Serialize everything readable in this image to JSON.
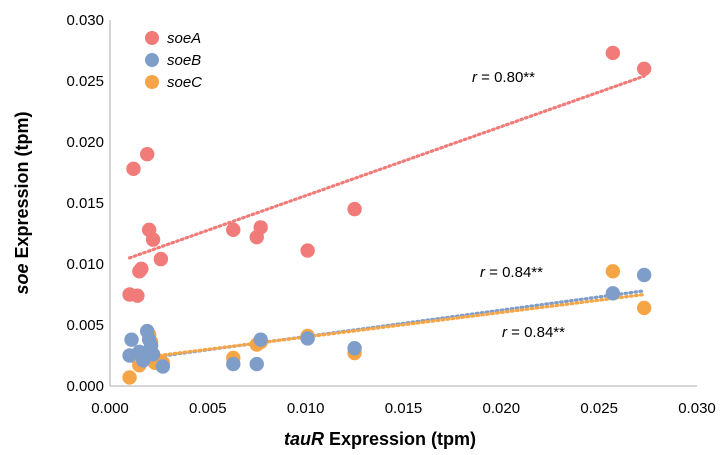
{
  "chart_data": {
    "type": "scatter",
    "xlabel": {
      "italic": "tauR",
      "rest": " Expression (tpm)"
    },
    "ylabel": {
      "italic": "soe",
      "rest": " Expression (tpm)"
    },
    "xlim": [
      0,
      0.03
    ],
    "ylim": [
      0,
      0.03
    ],
    "xticks": [
      "0.000",
      "0.005",
      "0.010",
      "0.015",
      "0.020",
      "0.025",
      "0.030"
    ],
    "yticks": [
      "0.000",
      "0.005",
      "0.010",
      "0.015",
      "0.020",
      "0.025",
      "0.030"
    ],
    "legend_position": "top-left",
    "series": [
      {
        "name": "soeA",
        "color": "#f07b79",
        "points": [
          [
            0.001,
            0.0075
          ],
          [
            0.0012,
            0.0178
          ],
          [
            0.0014,
            0.0074
          ],
          [
            0.0015,
            0.0094
          ],
          [
            0.0016,
            0.0096
          ],
          [
            0.0019,
            0.019
          ],
          [
            0.002,
            0.0128
          ],
          [
            0.0022,
            0.012
          ],
          [
            0.0026,
            0.0104
          ],
          [
            0.0063,
            0.0128
          ],
          [
            0.0075,
            0.0122
          ],
          [
            0.0077,
            0.013
          ],
          [
            0.0101,
            0.0111
          ],
          [
            0.0125,
            0.0145
          ],
          [
            0.0257,
            0.0273
          ],
          [
            0.0273,
            0.026
          ]
        ],
        "trend": [
          [
            0.001,
            0.0105
          ],
          [
            0.0273,
            0.0254
          ]
        ],
        "annotation": {
          "r_label": "r",
          "text": " = 0.80**"
        }
      },
      {
        "name": "soeB",
        "color": "#7f9dc9",
        "points": [
          [
            0.001,
            0.0025
          ],
          [
            0.0011,
            0.0038
          ],
          [
            0.0015,
            0.0028
          ],
          [
            0.0017,
            0.0021
          ],
          [
            0.0019,
            0.0045
          ],
          [
            0.002,
            0.0038
          ],
          [
            0.0021,
            0.0033
          ],
          [
            0.0022,
            0.0026
          ],
          [
            0.0027,
            0.0016
          ],
          [
            0.0063,
            0.0018
          ],
          [
            0.0075,
            0.0018
          ],
          [
            0.0077,
            0.0038
          ],
          [
            0.0101,
            0.0039
          ],
          [
            0.0125,
            0.0031
          ],
          [
            0.0257,
            0.0076
          ],
          [
            0.0273,
            0.0091
          ]
        ],
        "trend": [
          [
            0.001,
            0.0021
          ],
          [
            0.0273,
            0.0078
          ]
        ],
        "annotation": {
          "r_label": "r",
          "text": " = 0.84**"
        }
      },
      {
        "name": "soeC",
        "color": "#f5a545",
        "points": [
          [
            0.001,
            0.0007
          ],
          [
            0.0013,
            0.0024
          ],
          [
            0.0015,
            0.0017
          ],
          [
            0.0018,
            0.0027
          ],
          [
            0.002,
            0.0042
          ],
          [
            0.0021,
            0.0036
          ],
          [
            0.0023,
            0.0019
          ],
          [
            0.0027,
            0.0019
          ],
          [
            0.0063,
            0.0023
          ],
          [
            0.0075,
            0.0034
          ],
          [
            0.0077,
            0.0036
          ],
          [
            0.0101,
            0.0041
          ],
          [
            0.0125,
            0.0027
          ],
          [
            0.0257,
            0.0094
          ],
          [
            0.0273,
            0.0064
          ]
        ],
        "trend": [
          [
            0.001,
            0.0022
          ],
          [
            0.0273,
            0.0075
          ]
        ],
        "annotation": {
          "r_label": "r",
          "text": " = 0.84**"
        }
      }
    ]
  }
}
